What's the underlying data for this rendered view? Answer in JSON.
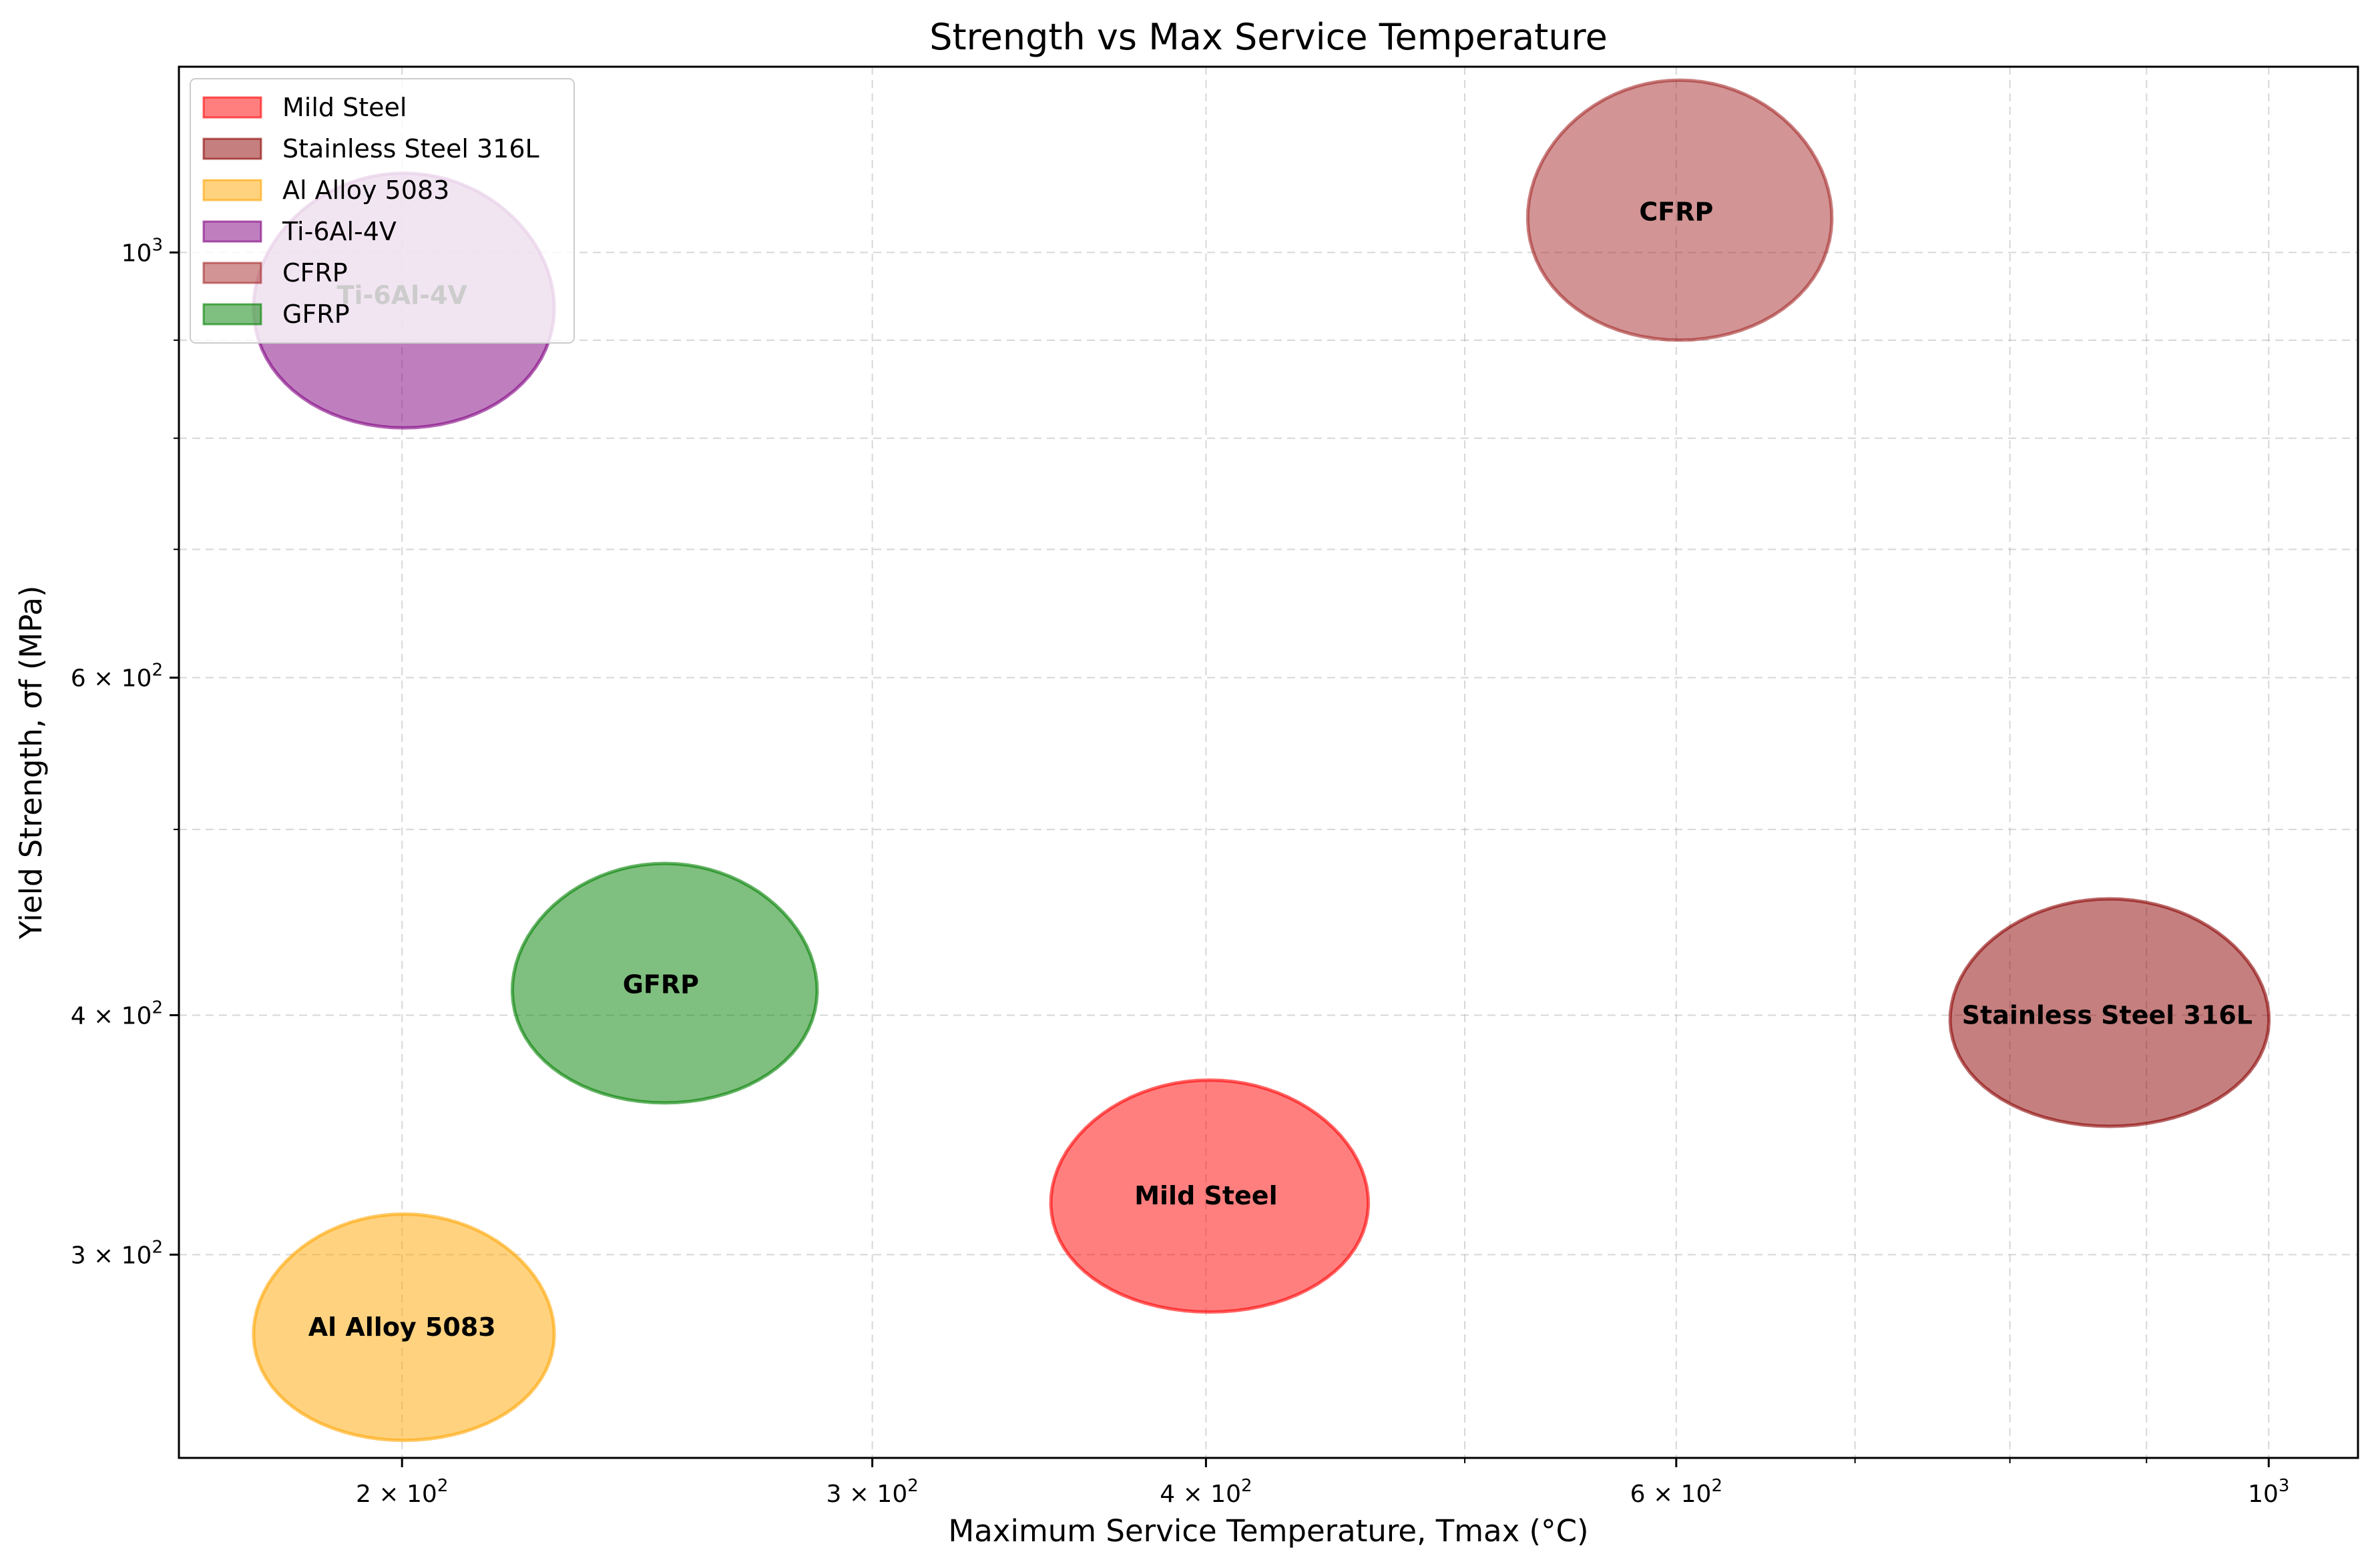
{
  "chart_data": {
    "type": "scatter",
    "title": "Strength vs Max Service Temperature",
    "xlabel": "Maximum Service Temperature, Tmax (°C)",
    "ylabel": "Yield Strength, σf (MPa)",
    "x_scale": "log",
    "y_scale": "log",
    "xlim": [
      165,
      1080
    ],
    "ylim": [
      235,
      1250
    ],
    "grid": true,
    "legend_position": "top-left",
    "x_major_ticks": [
      {
        "base": "2",
        "label": "2 × 10",
        "exp": "2",
        "value": 200
      },
      {
        "base": "3",
        "label": "3 × 10",
        "exp": "2",
        "value": 300
      },
      {
        "base": "4",
        "label": "4 × 10",
        "exp": "2",
        "value": 400
      },
      {
        "base": "6",
        "label": "6 × 10",
        "exp": "2",
        "value": 600
      },
      {
        "base": "",
        "label": "10",
        "exp": "3",
        "value": 1000
      }
    ],
    "y_major_ticks": [
      {
        "label": "3 × 10",
        "exp": "2",
        "value": 300
      },
      {
        "label": "4 × 10",
        "exp": "2",
        "value": 400
      },
      {
        "label": "6 × 10",
        "exp": "2",
        "value": 600
      },
      {
        "label": "10",
        "exp": "3",
        "value": 1000
      }
    ],
    "x_minor_ticks": [
      500,
      700,
      800,
      900
    ],
    "y_minor_ticks": [
      500,
      700,
      800,
      900
    ],
    "series": [
      {
        "name": "Mild Steel",
        "color": "#ff0000",
        "fill_opacity": 0.5,
        "stroke": "#ff0000",
        "x_range": [
          350,
          460
        ],
        "y_range": [
          280,
          370
        ],
        "label_x": 400,
        "label_y": 322
      },
      {
        "name": "Stainless Steel 316L",
        "color": "#8b0000",
        "fill_opacity": 0.5,
        "stroke": "#8b0000",
        "x_range": [
          760,
          1000
        ],
        "y_range": [
          350,
          460
        ],
        "label_x": 870,
        "label_y": 400
      },
      {
        "name": "Al Alloy 5083",
        "color": "#ffa500",
        "fill_opacity": 0.5,
        "stroke": "#ffa500",
        "x_range": [
          176,
          228
        ],
        "y_range": [
          240,
          315
        ],
        "label_x": 200,
        "label_y": 275
      },
      {
        "name": "Ti-6Al-4V",
        "color": "#800080",
        "fill_opacity": 0.5,
        "stroke": "#800080",
        "x_range": [
          176,
          228
        ],
        "y_range": [
          810,
          1100
        ],
        "label_x": 200,
        "label_y": 950
      },
      {
        "name": "CFRP",
        "color": "#a52a2a",
        "fill_opacity": 0.5,
        "stroke": "#a52a2a",
        "x_range": [
          528,
          686
        ],
        "y_range": [
          900,
          1230
        ],
        "label_x": 600,
        "label_y": 1050
      },
      {
        "name": "GFRP",
        "color": "#008000",
        "fill_opacity": 0.5,
        "stroke": "#008000",
        "x_range": [
          220,
          286
        ],
        "y_range": [
          360,
          480
        ],
        "label_x": 250,
        "label_y": 415
      }
    ],
    "legend": [
      {
        "label": "Mild Steel",
        "color": "#ff0000",
        "stroke": "#ff0000"
      },
      {
        "label": "Stainless Steel 316L",
        "color": "#8b0000",
        "stroke": "#8b0000"
      },
      {
        "label": "Al Alloy 5083",
        "color": "#ffa500",
        "stroke": "#ffa500"
      },
      {
        "label": "Ti-6Al-4V",
        "color": "#800080",
        "stroke": "#800080"
      },
      {
        "label": "CFRP",
        "color": "#a52a2a",
        "stroke": "#a52a2a"
      },
      {
        "label": "GFRP",
        "color": "#008000",
        "stroke": "#008000"
      }
    ]
  }
}
